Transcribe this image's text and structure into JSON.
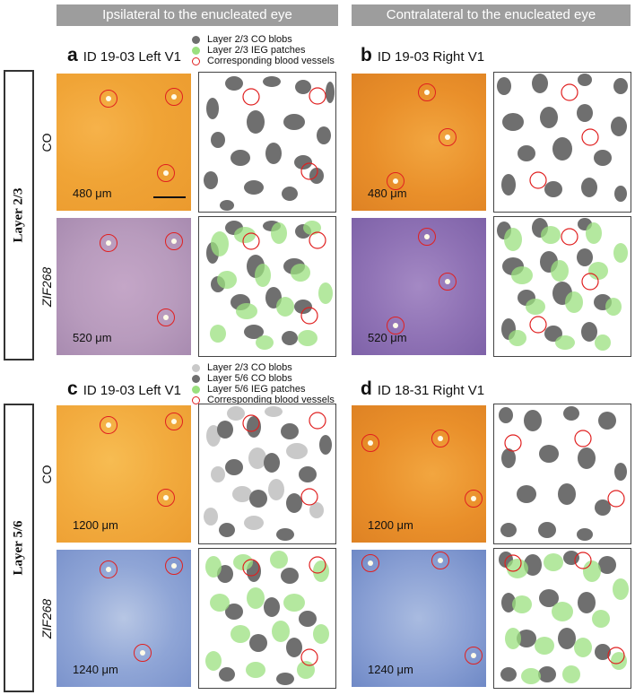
{
  "headers": {
    "ipsilateral": "Ipsilateral to the enucleated eye",
    "contralateral": "Contralateral to the enucleated eye"
  },
  "row_labels": {
    "top": "Layer 2/3",
    "bottom": "Layer 5/6"
  },
  "stain_labels": {
    "co": "CO",
    "zif": "ZIF268"
  },
  "panels": {
    "a": {
      "letter": "a",
      "title": "ID 19-03 Left V1"
    },
    "b": {
      "letter": "b",
      "title": "ID 19-03 Right V1"
    },
    "c": {
      "letter": "c",
      "title": "ID 19-03 Left V1"
    },
    "d": {
      "letter": "d",
      "title": "ID 18-31 Right V1"
    }
  },
  "legend_top": [
    {
      "text": "Layer 2/3 CO blobs",
      "color": "#6f6f6f"
    },
    {
      "text": "Layer 2/3 IEG patches",
      "color": "#9be07f"
    },
    {
      "text": "Corresponding blood vessels",
      "color": "ring"
    }
  ],
  "legend_bottom": [
    {
      "text": "Layer 2/3 CO blobs",
      "color": "#c9c9c9"
    },
    {
      "text": "Layer 5/6 CO blobs",
      "color": "#6f6f6f"
    },
    {
      "text": "Layer 5/6 IEG patches",
      "color": "#9be07f"
    },
    {
      "text": "Corresponding blood vessels",
      "color": "ring"
    }
  ],
  "depths": {
    "a_co": "480 μm",
    "a_zif": "520 μm",
    "b_co": "480 μm",
    "b_zif": "520 μm",
    "c_co": "1200 μm",
    "c_zif": "1240 μm",
    "d_co": "1200 μm",
    "d_zif": "1240 μm"
  },
  "colors": {
    "header_bg": "#9d9d9d",
    "co_blob": "#6f6f6f",
    "co_blob_light": "#c9c9c9",
    "ieg_patch": "#9be07f",
    "vessel_ring": "#e02020"
  }
}
